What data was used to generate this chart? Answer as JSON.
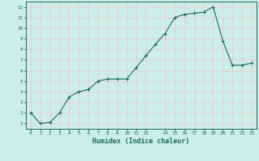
{
  "x_all": [
    0,
    1,
    2,
    3,
    4,
    5,
    6,
    7,
    8,
    9,
    10,
    11,
    12,
    13,
    14,
    15,
    16,
    17,
    18,
    19,
    20,
    21,
    22,
    23
  ],
  "y_all": [
    2.0,
    1.0,
    1.1,
    2.0,
    3.5,
    4.0,
    4.2,
    5.0,
    5.2,
    5.2,
    5.2,
    6.3,
    7.4,
    8.5,
    9.5,
    11.0,
    11.3,
    11.4,
    11.5,
    12.0,
    8.8,
    6.5,
    6.5,
    6.7
  ],
  "xlabel": "Humidex (Indice chaleur)",
  "xlim": [
    -0.5,
    23.5
  ],
  "ylim": [
    0.5,
    12.5
  ],
  "yticks": [
    1,
    2,
    3,
    4,
    5,
    6,
    7,
    8,
    9,
    10,
    11,
    12
  ],
  "xticks": [
    0,
    1,
    2,
    3,
    4,
    5,
    6,
    7,
    8,
    9,
    10,
    11,
    12,
    14,
    15,
    16,
    17,
    18,
    19,
    20,
    21,
    22,
    23
  ],
  "xtick_labels": [
    "0",
    "1",
    "2",
    "3",
    "4",
    "5",
    "6",
    "7",
    "8",
    "9",
    "10",
    "11",
    "12",
    "14",
    "15",
    "16",
    "17",
    "18",
    "19",
    "20",
    "21",
    "22",
    "23"
  ],
  "line_color": "#1a6b5a",
  "bg_color": "#cceee8",
  "grid_color": "#f0c8c8",
  "marker": "+"
}
